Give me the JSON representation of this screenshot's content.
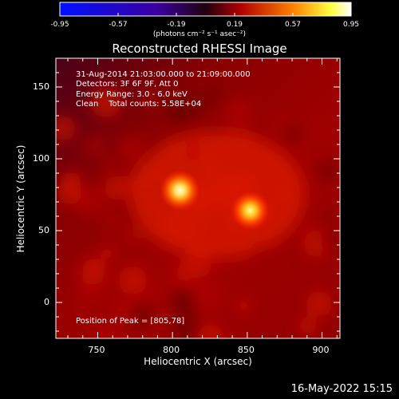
{
  "colorbar": {
    "ticks": [
      "-0.95",
      "-0.57",
      "-0.19",
      "0.19",
      "0.57",
      "0.95"
    ],
    "units": "(photons cm⁻² s⁻¹ asec⁻²)",
    "colors": [
      "#0000ff",
      "#000000",
      "#ff0000",
      "#ffff00",
      "#ffffff"
    ]
  },
  "chart_data": {
    "type": "heatmap",
    "title": "Reconstructed RHESSI Image",
    "xlabel": "Heliocentric X (arcsec)",
    "ylabel": "Heliocentric Y (arcsec)",
    "xlim": [
      722,
      912
    ],
    "ylim": [
      -25,
      170
    ],
    "x_ticks": [
      750,
      800,
      850,
      900
    ],
    "y_ticks": [
      0,
      50,
      100,
      150
    ],
    "sources": [
      {
        "x": 805,
        "y": 78,
        "intensity": 0.95
      },
      {
        "x": 852,
        "y": 64,
        "intensity": 0.85
      }
    ],
    "info_lines": [
      "31-Aug-2014 21:03:00.000 to 21:09:00.000",
      "Detectors: 3F 6F 9F, Att 0",
      "Energy Range: 3.0 - 6.0 keV",
      "Clean    Total counts: 5.58E+04"
    ],
    "peak_text": "Position of Peak = [805,78]"
  },
  "timestamp": "16-May-2022 15:15"
}
